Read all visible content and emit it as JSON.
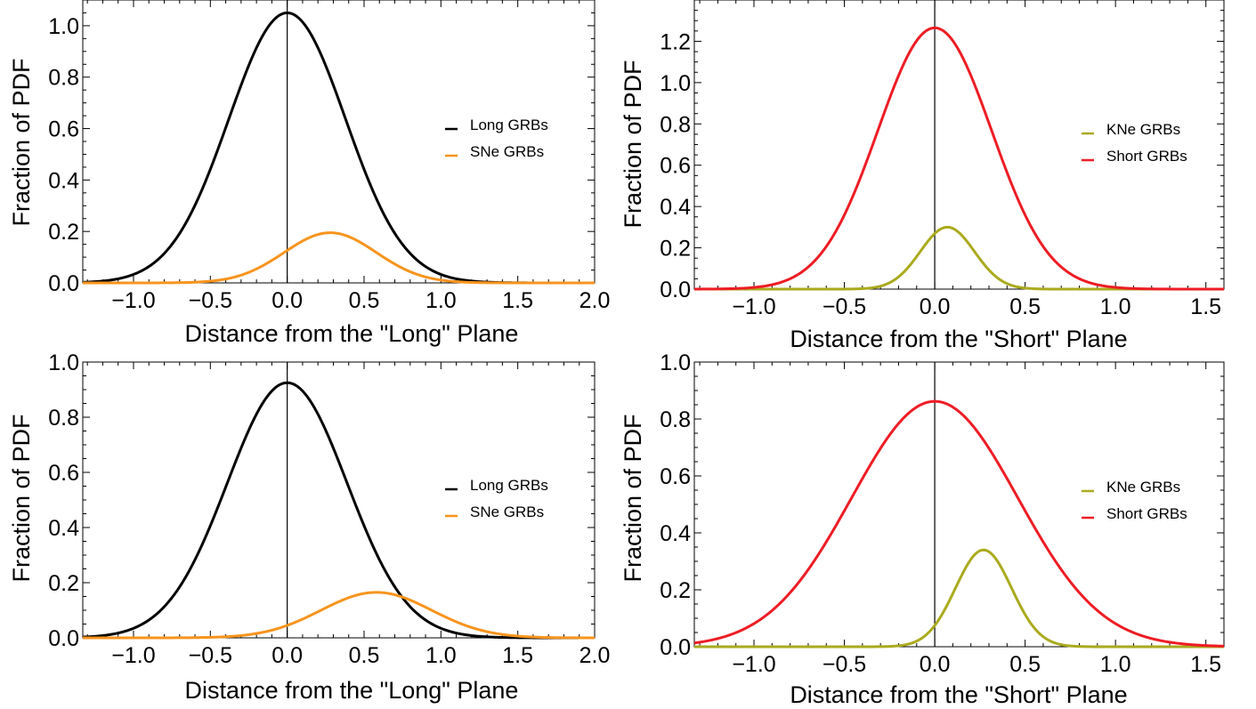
{
  "chart_data": [
    {
      "type": "line",
      "xlabel": "Distance from the \"Long\" Plane",
      "ylabel": "Fraction of PDF",
      "xlim": [
        -1.33,
        2.0
      ],
      "ylim": [
        0.0,
        1.1
      ],
      "x_ticks": [
        "−1.0",
        "−0.5",
        "0.0",
        "0.5",
        "1.0",
        "1.5",
        "2.0"
      ],
      "x_tick_values": [
        -1.0,
        -0.5,
        0.0,
        0.5,
        1.0,
        1.5,
        2.0
      ],
      "y_ticks": [
        "0.0",
        "0.2",
        "0.4",
        "0.6",
        "0.8",
        "1.0"
      ],
      "y_tick_values": [
        0.0,
        0.2,
        0.4,
        0.6,
        0.8,
        1.0
      ],
      "legend_position": "right",
      "series": [
        {
          "name": "Long GRBs",
          "color": "#000000",
          "peak_x": 0.0,
          "peak_y": 1.05,
          "sigma": 0.38
        },
        {
          "name": "SNe GRBs",
          "color": "#f7941d",
          "peak_x": 0.28,
          "peak_y": 0.195,
          "sigma": 0.3
        }
      ]
    },
    {
      "type": "line",
      "xlabel": "Distance from the \"Short\" Plane",
      "ylabel": "Fraction of PDF",
      "xlim": [
        -1.33,
        1.6
      ],
      "ylim": [
        0.0,
        1.4
      ],
      "x_ticks": [
        "−1.0",
        "−0.5",
        "0.0",
        "0.5",
        "1.0",
        "1.5"
      ],
      "x_tick_values": [
        -1.0,
        -0.5,
        0.0,
        0.5,
        1.0,
        1.5
      ],
      "y_ticks": [
        "0.0",
        "0.2",
        "0.4",
        "0.6",
        "0.8",
        "1.0",
        "1.2"
      ],
      "y_tick_values": [
        0.0,
        0.2,
        0.4,
        0.6,
        0.8,
        1.0,
        1.2
      ],
      "legend_position": "right",
      "series": [
        {
          "name": "KNe GRBs",
          "color": "#aaaa1e",
          "peak_x": 0.07,
          "peak_y": 0.3,
          "sigma": 0.15
        },
        {
          "name": "Short GRBs",
          "color": "#ee1c24",
          "peak_x": 0.0,
          "peak_y": 1.265,
          "sigma": 0.315
        }
      ]
    },
    {
      "type": "line",
      "xlabel": "Distance from the \"Long\" Plane",
      "ylabel": "Fraction of PDF",
      "xlim": [
        -1.33,
        2.0
      ],
      "ylim": [
        0.0,
        1.0
      ],
      "x_ticks": [
        "−1.0",
        "−0.5",
        "0.0",
        "0.5",
        "1.0",
        "1.5",
        "2.0"
      ],
      "x_tick_values": [
        -1.0,
        -0.5,
        0.0,
        0.5,
        1.0,
        1.5,
        2.0
      ],
      "y_ticks": [
        "0.0",
        "0.2",
        "0.4",
        "0.6",
        "0.8",
        "1.0"
      ],
      "y_tick_values": [
        0.0,
        0.2,
        0.4,
        0.6,
        0.8,
        1.0
      ],
      "legend_position": "right",
      "series": [
        {
          "name": "Long GRBs",
          "color": "#000000",
          "peak_x": 0.0,
          "peak_y": 0.925,
          "sigma": 0.39
        },
        {
          "name": "SNe GRBs",
          "color": "#f7941d",
          "peak_x": 0.58,
          "peak_y": 0.165,
          "sigma": 0.36
        }
      ]
    },
    {
      "type": "line",
      "xlabel": "Distance from the \"Short\" Plane",
      "ylabel": "Fraction of PDF",
      "xlim": [
        -1.33,
        1.6
      ],
      "ylim": [
        0.0,
        1.0
      ],
      "x_ticks": [
        "−1.0",
        "−0.5",
        "0.0",
        "0.5",
        "1.0",
        "1.5"
      ],
      "x_tick_values": [
        -1.0,
        -0.5,
        0.0,
        0.5,
        1.0,
        1.5
      ],
      "y_ticks": [
        "0.0",
        "0.2",
        "0.4",
        "0.6",
        "0.8",
        "1.0"
      ],
      "y_tick_values": [
        0.0,
        0.2,
        0.4,
        0.6,
        0.8,
        1.0
      ],
      "legend_position": "right",
      "series": [
        {
          "name": "KNe GRBs",
          "color": "#aaaa1e",
          "peak_x": 0.27,
          "peak_y": 0.34,
          "sigma": 0.155
        },
        {
          "name": "Short GRBs",
          "color": "#ee1c24",
          "peak_x": 0.0,
          "peak_y": 0.862,
          "sigma": 0.46
        }
      ]
    }
  ]
}
